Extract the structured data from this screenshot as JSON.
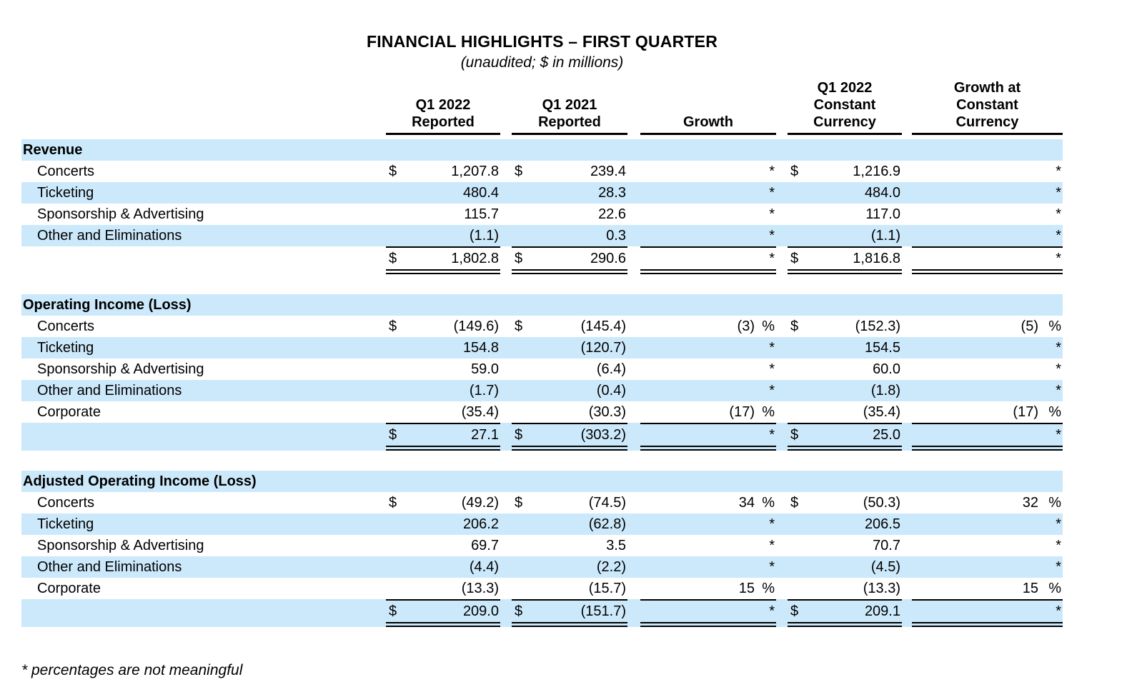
{
  "title": "FINANCIAL HIGHLIGHTS – FIRST QUARTER",
  "subtitle": "(unaudited; $ in millions)",
  "footnote": "* percentages are not meaningful",
  "colors": {
    "stripe": "#cce9fb",
    "text": "#000000",
    "background": "#ffffff"
  },
  "table": {
    "column_headers": [
      "Q1 2022\nReported",
      "Q1 2021\nReported",
      "Growth",
      "Q1 2022\nConstant\nCurrency",
      "Growth at\nConstant\nCurrency"
    ],
    "sections": [
      {
        "heading": "Revenue",
        "rows": [
          {
            "label": "Concerts",
            "d1": "$",
            "v1": "1,207.8",
            "d2": "$",
            "v2": "239.4",
            "s1": "*",
            "d3": "$",
            "v3": "1,216.9",
            "s2": "*"
          },
          {
            "label": "Ticketing",
            "v1": "480.4",
            "v2": "28.3",
            "s1": "*",
            "v3": "484.0",
            "s2": "*"
          },
          {
            "label": "Sponsorship & Advertising",
            "v1": "115.7",
            "v2": "22.6",
            "s1": "*",
            "v3": "117.0",
            "s2": "*"
          },
          {
            "label": "Other and Eliminations",
            "v1": "(1.1)",
            "v2": "0.3",
            "s1": "*",
            "v3": "(1.1)",
            "s2": "*"
          }
        ],
        "total": {
          "d1": "$",
          "v1": "1,802.8",
          "d2": "$",
          "v2": "290.6",
          "s1": "*",
          "d3": "$",
          "v3": "1,816.8",
          "s2": "*"
        }
      },
      {
        "heading": "Operating Income (Loss)",
        "rows": [
          {
            "label": "Concerts",
            "d1": "$",
            "v1": "(149.6)",
            "d2": "$",
            "v2": "(145.4)",
            "g1": "(3)",
            "s1": "%",
            "d3": "$",
            "v3": "(152.3)",
            "g2": "(5)",
            "s2": "%"
          },
          {
            "label": "Ticketing",
            "v1": "154.8",
            "v2": "(120.7)",
            "s1": "*",
            "v3": "154.5",
            "s2": "*"
          },
          {
            "label": "Sponsorship & Advertising",
            "v1": "59.0",
            "v2": "(6.4)",
            "s1": "*",
            "v3": "60.0",
            "s2": "*"
          },
          {
            "label": "Other and Eliminations",
            "v1": "(1.7)",
            "v2": "(0.4)",
            "s1": "*",
            "v3": "(1.8)",
            "s2": "*"
          },
          {
            "label": "Corporate",
            "v1": "(35.4)",
            "v2": "(30.3)",
            "g1": "(17)",
            "s1": "%",
            "v3": "(35.4)",
            "g2": "(17)",
            "s2": "%"
          }
        ],
        "total": {
          "d1": "$",
          "v1": "27.1",
          "d2": "$",
          "v2": "(303.2)",
          "s1": "*",
          "d3": "$",
          "v3": "25.0",
          "s2": "*"
        }
      },
      {
        "heading": "Adjusted Operating Income (Loss)",
        "rows": [
          {
            "label": "Concerts",
            "d1": "$",
            "v1": "(49.2)",
            "d2": "$",
            "v2": "(74.5)",
            "g1": "34",
            "s1": "%",
            "d3": "$",
            "v3": "(50.3)",
            "g2": "32",
            "s2": "%"
          },
          {
            "label": "Ticketing",
            "v1": "206.2",
            "v2": "(62.8)",
            "s1": "*",
            "v3": "206.5",
            "s2": "*"
          },
          {
            "label": "Sponsorship & Advertising",
            "v1": "69.7",
            "v2": "3.5",
            "s1": "*",
            "v3": "70.7",
            "s2": "*"
          },
          {
            "label": "Other and Eliminations",
            "v1": "(4.4)",
            "v2": "(2.2)",
            "s1": "*",
            "v3": "(4.5)",
            "s2": "*"
          },
          {
            "label": "Corporate",
            "v1": "(13.3)",
            "v2": "(15.7)",
            "g1": "15",
            "s1": "%",
            "v3": "(13.3)",
            "g2": "15",
            "s2": "%"
          }
        ],
        "total": {
          "d1": "$",
          "v1": "209.0",
          "d2": "$",
          "v2": "(151.7)",
          "s1": "*",
          "d3": "$",
          "v3": "209.1",
          "s2": "*"
        }
      }
    ]
  }
}
